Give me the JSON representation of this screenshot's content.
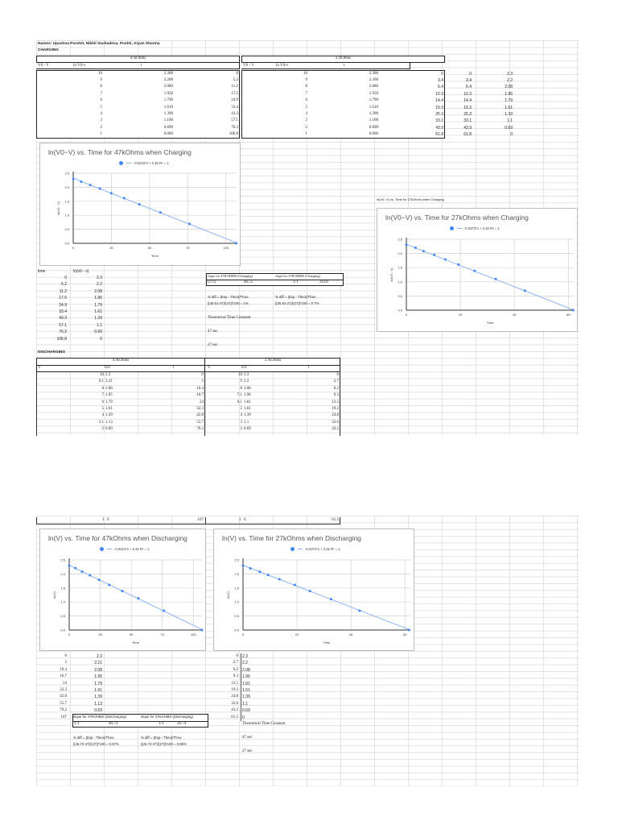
{
  "header": {
    "names": "Names: Upashna Purohit, Nikhil Sachadeva, Pushti, Aryan Sharma",
    "charging_label": "CHARGING",
    "discharging_label": "DISCHARGING"
  },
  "charging": {
    "r47": {
      "title": "47kOhms",
      "headers": [
        "V0 - V",
        "ln V0-v",
        "t"
      ],
      "rows": [
        [
          "10",
          "2.300",
          "0"
        ],
        [
          "9",
          "2.200",
          "5.2"
        ],
        [
          "8",
          "2.080",
          "11.2"
        ],
        [
          "7",
          "1.950",
          "17.5"
        ],
        [
          "6",
          "1.790",
          "24.9"
        ],
        [
          "5",
          "1.610",
          "33.4"
        ],
        [
          "4",
          "1.390",
          "43.3"
        ],
        [
          "3",
          "1.100",
          "57.1"
        ],
        [
          "2",
          "0.690",
          "76.2"
        ],
        [
          "1",
          "0.000",
          "106.8"
        ]
      ]
    },
    "r27": {
      "title": "27kOhms",
      "headers": [
        "V0 - V",
        "ln V0-v",
        "t"
      ],
      "rows": [
        [
          "10",
          "2.300",
          "0"
        ],
        [
          "9",
          "2.200",
          "3.4"
        ],
        [
          "8",
          "2.080",
          "6.4"
        ],
        [
          "7",
          "1.950",
          "10.3"
        ],
        [
          "6",
          "1.790",
          "14.4"
        ],
        [
          "5",
          "1.610",
          "19.3"
        ],
        [
          "4",
          "1.390",
          "25.3"
        ],
        [
          "3",
          "1.100",
          "33.1"
        ],
        [
          "2",
          "0.690",
          "43.9"
        ],
        [
          "1",
          "0.000",
          "61.8"
        ]
      ],
      "side_pairs": [
        [
          "0",
          "2.3"
        ],
        [
          "3.4",
          "2.2"
        ],
        [
          "6.4",
          "2.08"
        ],
        [
          "10.3",
          "1.95"
        ],
        [
          "14.4",
          "1.79"
        ],
        [
          "19.3",
          "1.61"
        ],
        [
          "25.3",
          "1.39"
        ],
        [
          "33.1",
          "1.1"
        ],
        [
          "43.9",
          "0.69"
        ],
        [
          "61.8",
          "0"
        ]
      ]
    },
    "pairs_47": {
      "headers": [
        "time",
        "ln(v0 - v)"
      ],
      "rows": [
        [
          "0",
          "2.3"
        ],
        [
          "5.2",
          "2.2"
        ],
        [
          "11.2",
          "2.08"
        ],
        [
          "17.5",
          "1.95"
        ],
        [
          "24.9",
          "1.79"
        ],
        [
          "33.4",
          "1.61"
        ],
        [
          "43.3",
          "1.39"
        ],
        [
          "57.1",
          "1.1"
        ],
        [
          "76.2",
          "0.69"
        ],
        [
          "106.8",
          "0"
        ]
      ]
    },
    "slope_box": {
      "h1": "slope for 47KOHMS (Charging)",
      "h2": "slope for 27KOHMS (Charging)",
      "l1": "(1/T)",
      "v1": "46.51",
      "l2": "1/T",
      "v2": "26.81"
    },
    "pdiff_1a": "% diff = (Exp - Theo)/Theo",
    "pdiff_1b": "|(46.51-47)/(47)|*100 = 1%",
    "pdiff_2a": "% diff = (Exp - Theo)/Theo",
    "pdiff_2b": "|(26.81-27)/(27)|*100 = 0.7%",
    "theo_label": "Theoretical Time Constant",
    "theo_47": "47 sec",
    "theo_27": "27 sec",
    "chart27_cell_label": "ln(V0- V) vs. Time for 27kOhms when Charging"
  },
  "discharging": {
    "r47": {
      "title": "47KOhms",
      "headers": [
        "V",
        "lnV",
        "t"
      ],
      "rows": [
        [
          "10",
          "2.3",
          "0"
        ],
        [
          "9.1",
          "2.21",
          "5"
        ],
        [
          "8",
          "2.08",
          "10.4"
        ],
        [
          "7",
          "1.95",
          "16.7"
        ],
        [
          "6",
          "1.79",
          "24"
        ],
        [
          "5",
          "1.61",
          "32.3"
        ],
        [
          "4",
          "1.39",
          "42.8"
        ],
        [
          "3.1",
          "1.13",
          "55.7"
        ],
        [
          "2",
          "0.69",
          "76.2"
        ],
        [
          "1",
          "0",
          "107"
        ]
      ]
    },
    "r27": {
      "title": "27KOhms",
      "headers": [
        "V",
        "lnV",
        "t"
      ],
      "rows": [
        [
          "10",
          "2.3",
          "0"
        ],
        [
          "9",
          "2.2",
          "2.7"
        ],
        [
          "8",
          "2.08",
          "6.2"
        ],
        [
          "7.1",
          "1.96",
          "9.3"
        ],
        [
          "6.1",
          "1.81",
          "13.5"
        ],
        [
          "5",
          "1.61",
          "19.2"
        ],
        [
          "4",
          "1.39",
          "24.8"
        ],
        [
          "3",
          "1.1",
          "32.6"
        ],
        [
          "2",
          "0.69",
          "43.2"
        ],
        [
          "1",
          "0",
          "61.5"
        ]
      ]
    },
    "pairs_47": [
      [
        "0",
        "2.3"
      ],
      [
        "5",
        "2.21"
      ],
      [
        "10.4",
        "2.08"
      ],
      [
        "16.7",
        "1.95"
      ],
      [
        "24",
        "1.79"
      ],
      [
        "32.3",
        "1.61"
      ],
      [
        "42.8",
        "1.39"
      ],
      [
        "55.7",
        "1.13"
      ],
      [
        "76.2",
        "0.69"
      ],
      [
        "107",
        "0"
      ]
    ],
    "pairs_27": [
      [
        "0",
        "2.3"
      ],
      [
        "2.7",
        "2.2"
      ],
      [
        "6.2",
        "2.08"
      ],
      [
        "9.3",
        "1.96"
      ],
      [
        "13.5",
        "1.81"
      ],
      [
        "19.2",
        "1.61"
      ],
      [
        "24.8",
        "1.39"
      ],
      [
        "32.6",
        "1.1"
      ],
      [
        "43.2",
        "0.69"
      ],
      [
        "61.5",
        "0"
      ]
    ],
    "slope_box": {
      "h1": "slope for 47KOHMS (DisCharging)",
      "h2": "slope for 27KOHMS (Discharging)",
      "l1": "1/T",
      "v1": "46.73",
      "l2": "1/T",
      "v2": "26.74"
    },
    "pdiff_1a": "% diff = (Exp - Theo)/Theo",
    "pdiff_1b": "|(46.73-47)/(47)|*100 = 0.57%",
    "pdiff_2a": "% diff = (Exp - Theo)/Theo",
    "pdiff_2b": "|(26.74-27)/(27)|*100 = 0.96%",
    "theo_label": "Theoretical Time Constant",
    "theo_47": "47 sec",
    "theo_27": "27 sec"
  },
  "chart_data": [
    {
      "type": "scatter",
      "title": "ln(V0−V) vs. Time for 47kOhms when Charging",
      "legend": "-0.0215*x + 2.32 R² = 1",
      "xlabel": "Time",
      "ylabel": "ln(V0 - V)",
      "xlim": [
        0,
        107
      ],
      "ylim": [
        0,
        2.5
      ],
      "xticks": [
        "0",
        "25",
        "50",
        "75",
        "100"
      ],
      "yticks": [
        "0.0",
        "0.5",
        "1.0",
        "1.5",
        "2.0",
        "2.5"
      ],
      "x": [
        0,
        5.2,
        11.2,
        17.5,
        24.9,
        33.4,
        43.3,
        57.1,
        76.2,
        106.8
      ],
      "y": [
        2.3,
        2.2,
        2.08,
        1.95,
        1.79,
        1.61,
        1.39,
        1.1,
        0.69,
        0
      ],
      "trendline": {
        "slope": -0.0215,
        "intercept": 2.32
      }
    },
    {
      "type": "scatter",
      "title": "ln(V0−V) vs. Time for 27kOhms when Charging",
      "legend": "-0.0373*x + 2.32 R² = 1",
      "xlabel": "Time",
      "ylabel": "ln(V0 - V)",
      "xlim": [
        0,
        62
      ],
      "ylim": [
        0,
        2.5
      ],
      "xticks": [
        "0",
        "20",
        "40",
        "60"
      ],
      "yticks": [
        "0.0",
        "0.5",
        "1.0",
        "1.5",
        "2.0",
        "2.5"
      ],
      "x": [
        0,
        3.4,
        6.4,
        10.3,
        14.4,
        19.3,
        25.3,
        33.1,
        43.9,
        61.8
      ],
      "y": [
        2.3,
        2.2,
        2.08,
        1.95,
        1.79,
        1.61,
        1.39,
        1.1,
        0.69,
        0
      ],
      "trendline": {
        "slope": -0.0373,
        "intercept": 2.32
      }
    },
    {
      "type": "scatter",
      "title": "ln(V) vs. Time for 47kOhms when Discharging",
      "legend": "-0.0214*x + 2.31 R² = 1",
      "xlabel": "Time",
      "ylabel": "ln(V)",
      "xlim": [
        0,
        107
      ],
      "ylim": [
        0,
        2.5
      ],
      "xticks": [
        "0",
        "25",
        "50",
        "75",
        "100"
      ],
      "yticks": [
        "0.0",
        "0.5",
        "1.0",
        "1.5",
        "2.0",
        "2.5"
      ],
      "x": [
        0,
        5,
        10.4,
        16.7,
        24,
        32.3,
        42.8,
        55.7,
        76.2,
        107
      ],
      "y": [
        2.3,
        2.21,
        2.08,
        1.95,
        1.79,
        1.61,
        1.39,
        1.13,
        0.69,
        0
      ],
      "trendline": {
        "slope": -0.0214,
        "intercept": 2.31
      }
    },
    {
      "type": "scatter",
      "title": "ln(V) vs. Time for 27kOhms when Discharging",
      "legend": "-0.0374*x + 2.31 R² = 1",
      "xlabel": "Time",
      "ylabel": "ln(V)",
      "xlim": [
        0,
        62
      ],
      "ylim": [
        0,
        2.5
      ],
      "xticks": [
        "0",
        "20",
        "40",
        "60"
      ],
      "yticks": [
        "0.0",
        "0.5",
        "1.0",
        "1.5",
        "2.0",
        "2.5"
      ],
      "x": [
        0,
        2.7,
        6.2,
        9.3,
        13.5,
        19.2,
        24.8,
        32.6,
        43.2,
        61.5
      ],
      "y": [
        2.3,
        2.2,
        2.08,
        1.96,
        1.81,
        1.61,
        1.39,
        1.1,
        0.69,
        0
      ],
      "trendline": {
        "slope": -0.0374,
        "intercept": 2.31
      }
    }
  ],
  "colors": {
    "point": "#4285f4",
    "trend": "#8ab4f8",
    "grid": "#e2e2e2",
    "border": "#222222"
  }
}
